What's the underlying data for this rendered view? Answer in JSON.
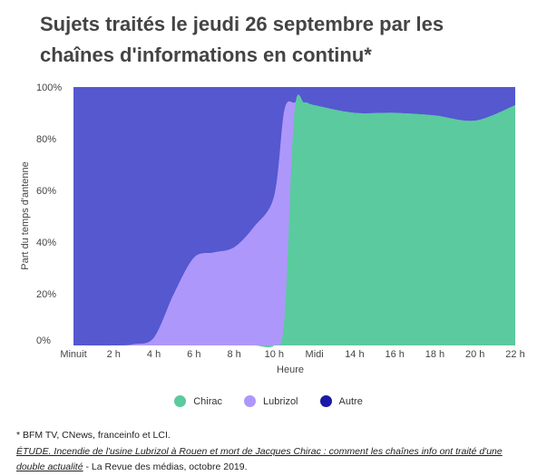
{
  "title": "Sujets traités le jeudi 26 septembre par les chaînes d'informations en continu*",
  "footnote": "* BFM TV, CNews, franceinfo et LCI.",
  "source": {
    "link_text": "ÉTUDE. Incendie de l'usine Lubrizol à Rouen et mort de Jacques Chirac : comment les chaînes info ont traité d'une double actualité",
    "suffix": " - La Revue des médias, octobre 2019."
  },
  "colors": {
    "chirac": "#5bca9e",
    "lubrizol": "#ae97fb",
    "autre": "#5558cf",
    "autre_legend": "#1a1aa6"
  },
  "chart_data": {
    "type": "area",
    "stacked": true,
    "xlabel": "Heure",
    "ylabel": "Part du temps d'antenne",
    "x_ticks": [
      "Minuit",
      "2 h",
      "4 h",
      "6 h",
      "8 h",
      "10 h",
      "Midi",
      "14 h",
      "16 h",
      "18 h",
      "20 h",
      "22 h"
    ],
    "y_ticks": [
      "0%",
      "20%",
      "40%",
      "60%",
      "80%",
      "100%"
    ],
    "ylim": [
      0,
      100
    ],
    "x": [
      0,
      2,
      3,
      4,
      5,
      6,
      7,
      8,
      9,
      10,
      10.5,
      11,
      11.5,
      12,
      14,
      16,
      18,
      20,
      22
    ],
    "series": [
      {
        "name": "Chirac",
        "values": [
          0,
          0,
          0,
          0,
          0,
          0,
          0,
          0,
          0,
          0,
          10,
          90,
          94,
          93,
          90,
          90,
          89,
          87,
          93
        ]
      },
      {
        "name": "Lubrizol",
        "values": [
          0,
          0,
          0.5,
          3,
          20,
          34,
          36,
          38,
          46,
          58,
          81,
          4,
          0,
          0,
          0,
          0,
          0,
          0,
          0
        ]
      },
      {
        "name": "Autre",
        "values": [
          100,
          100,
          99.5,
          97,
          80,
          66,
          64,
          62,
          54,
          42,
          9,
          6,
          6,
          7,
          10,
          10,
          11,
          13,
          7
        ]
      }
    ],
    "legend": [
      "Chirac",
      "Lubrizol",
      "Autre"
    ],
    "legend_position": "bottom"
  }
}
